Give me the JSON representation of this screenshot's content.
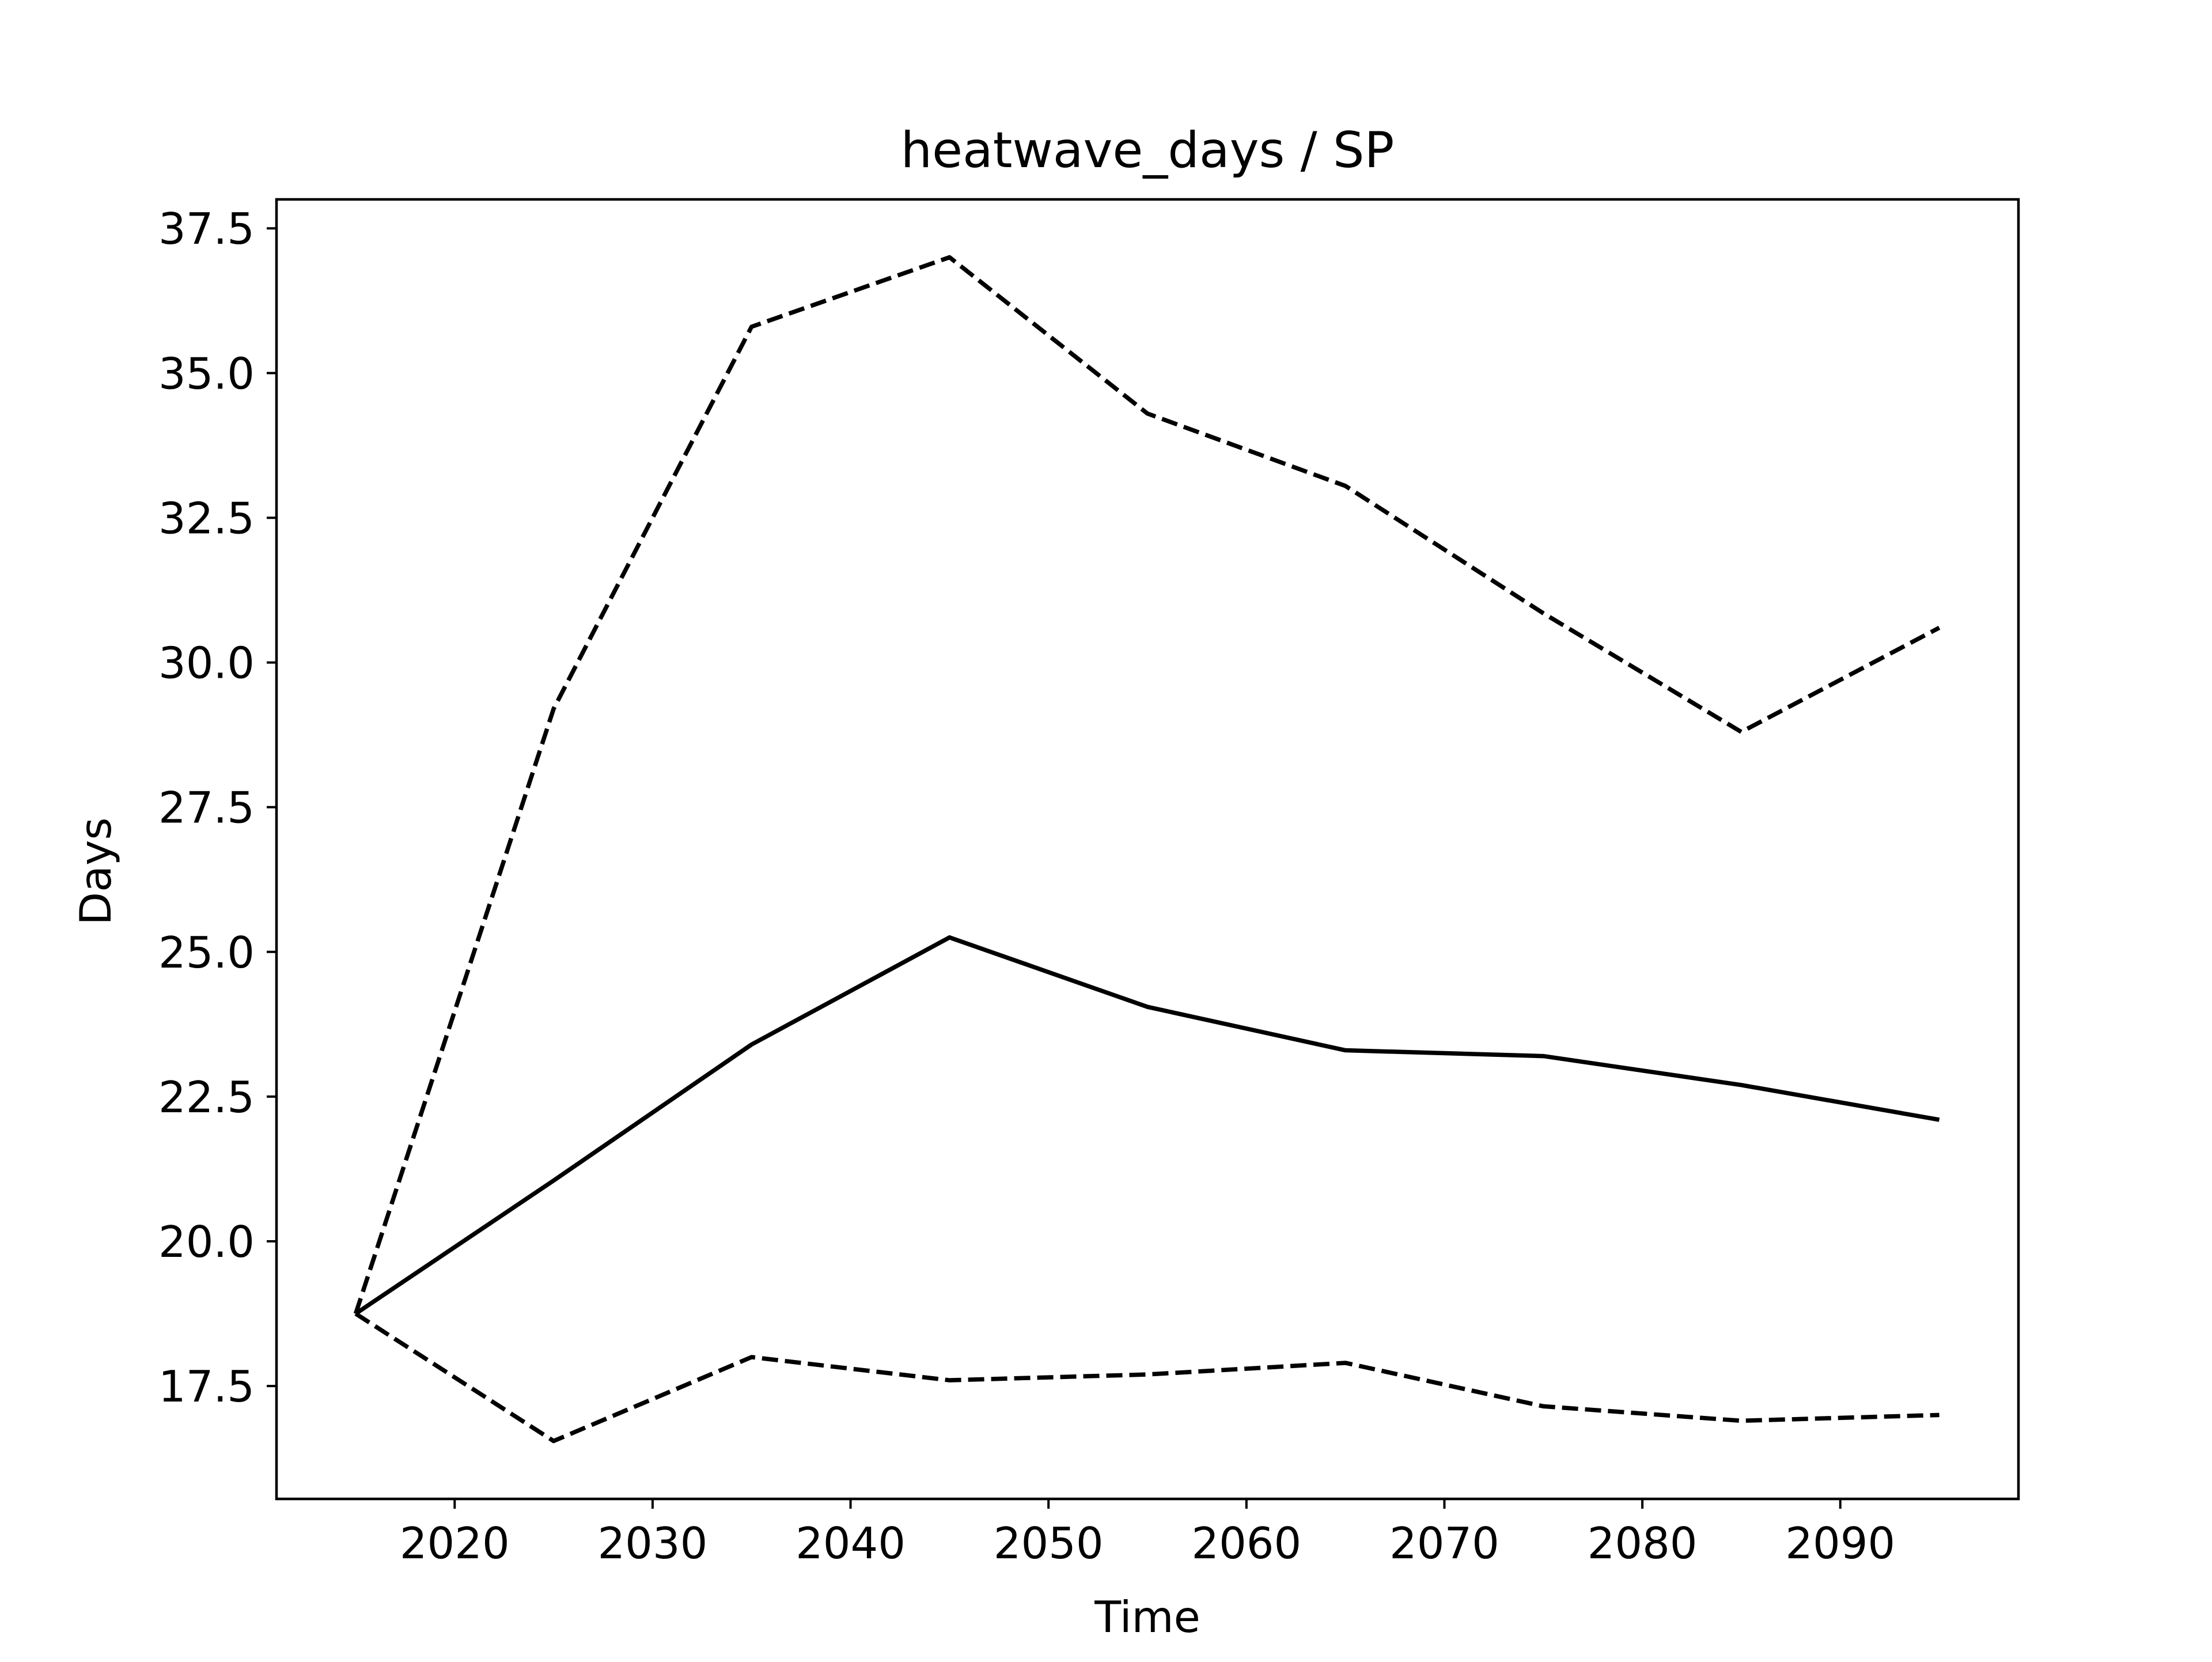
{
  "chart_data": {
    "type": "line",
    "title": "heatwave_days / SP",
    "xlabel": "Time",
    "ylabel": "Days",
    "xlim": [
      2011,
      2099
    ],
    "ylim": [
      15.55,
      38.0
    ],
    "xticks": [
      2020,
      2030,
      2040,
      2050,
      2060,
      2070,
      2080,
      2090
    ],
    "yticks": [
      17.5,
      20.0,
      22.5,
      25.0,
      27.5,
      30.0,
      32.5,
      35.0,
      37.5
    ],
    "ytick_labels": [
      "17.5",
      "20.0",
      "22.5",
      "25.0",
      "27.5",
      "30.0",
      "32.5",
      "35.0",
      "37.5"
    ],
    "grid": false,
    "x": [
      2015,
      2025,
      2035,
      2045,
      2055,
      2065,
      2075,
      2085,
      2095
    ],
    "series": [
      {
        "style": "dashed",
        "color": "#000000",
        "values": [
          18.75,
          29.2,
          35.8,
          37.0,
          34.3,
          33.05,
          30.85,
          28.8,
          30.6
        ]
      },
      {
        "style": "solid",
        "color": "#000000",
        "values": [
          18.75,
          21.05,
          23.4,
          25.25,
          24.05,
          23.3,
          23.2,
          22.7,
          22.1
        ]
      },
      {
        "style": "dashed",
        "color": "#000000",
        "values": [
          18.75,
          16.55,
          18.0,
          17.6,
          17.7,
          17.9,
          17.15,
          16.9,
          17.0
        ]
      }
    ]
  }
}
